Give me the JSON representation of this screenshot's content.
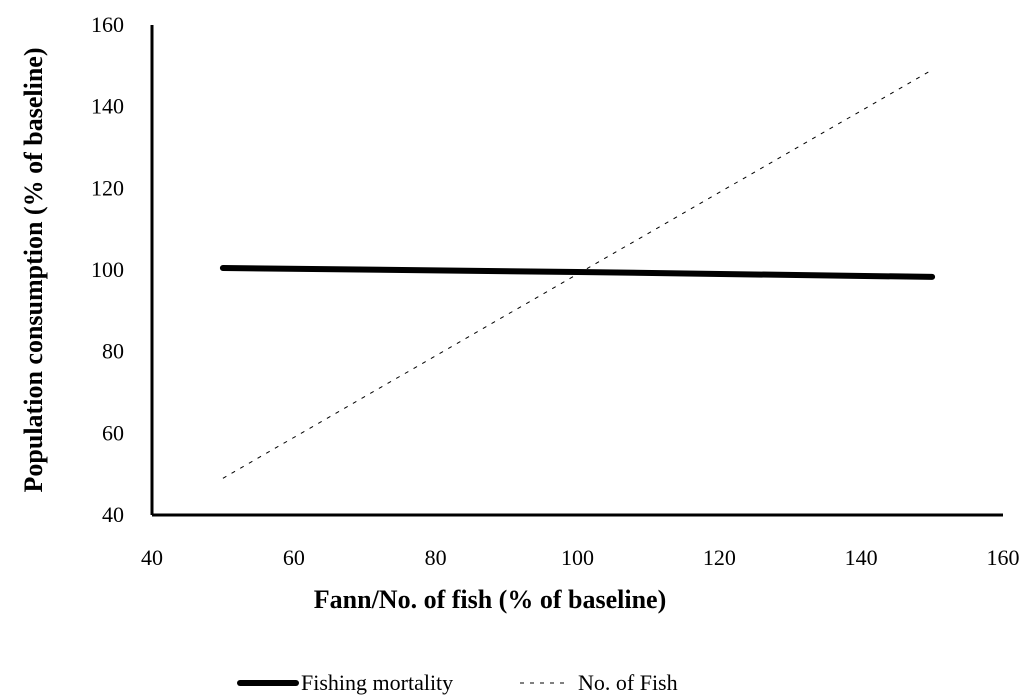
{
  "chart_data": {
    "type": "line",
    "title": "",
    "xlabel": "Fann/No. of fish (% of baseline)",
    "ylabel": "Population consumption (% of baseline)",
    "xlim": [
      40,
      160
    ],
    "ylim": [
      40,
      160
    ],
    "xticks": [
      40,
      60,
      80,
      100,
      120,
      140,
      160
    ],
    "yticks": [
      40,
      60,
      80,
      100,
      120,
      140,
      160
    ],
    "grid": false,
    "legend_position": "bottom",
    "series": [
      {
        "name": "Fishing mortality",
        "style": "solid-thick",
        "color": "#000000",
        "x": [
          50,
          100,
          150
        ],
        "y": [
          100.5,
          99.5,
          98.3
        ]
      },
      {
        "name": "No. of Fish",
        "style": "dashed-thin",
        "color": "#000000",
        "x": [
          50,
          100,
          150
        ],
        "y": [
          49,
          99,
          149
        ]
      }
    ]
  }
}
